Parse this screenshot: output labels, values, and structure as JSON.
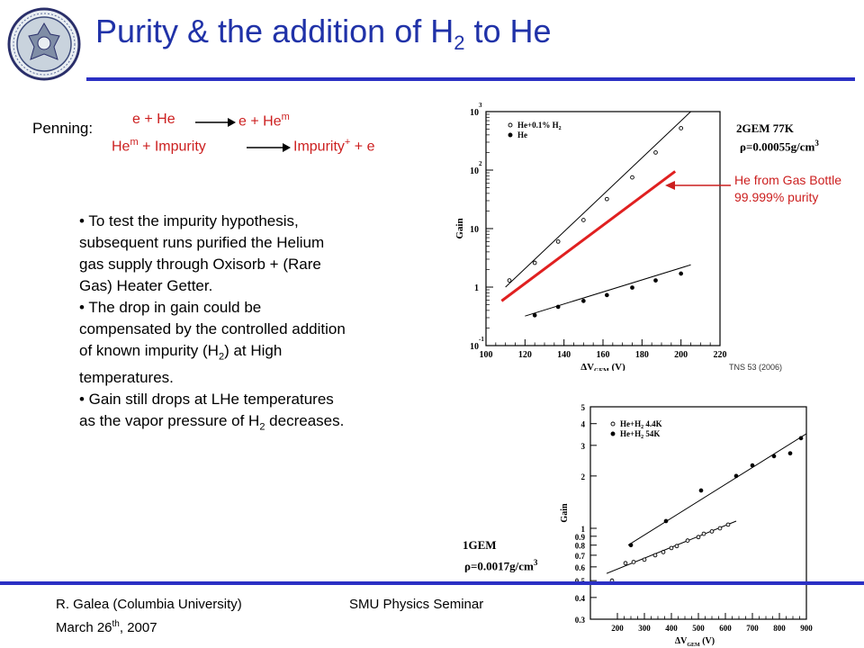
{
  "title": {
    "text": "Purity & the addition of H",
    "sub": "2",
    "suffix": " to He"
  },
  "penning": {
    "label": "Penning:",
    "r1_left": "e + He",
    "r1_right": "e + He",
    "r1_right_sup": "m",
    "r2_left": "He",
    "r2_left_sup": "m",
    "r2_left_rest": " + Impurity",
    "r2_right": "Impurity",
    "r2_right_sup": "+",
    "r2_right_rest": " + e"
  },
  "bullets": {
    "b1": "• To test the impurity hypothesis, subsequent runs purified the Helium gas supply through Oxisorb + (Rare Gas) Heater Getter.",
    "b2_a": "• The drop  in gain could be compensated by the controlled addition of known impurity (H",
    "b2_sub": "2",
    "b2_b": ") at High temperatures.",
    "b3_a": "• Gain still drops at LHe temperatures as the vapor pressure of H",
    "b3_sub": "2",
    "b3_b": " decreases."
  },
  "plot1_labels": {
    "condition": "2GEM 77K",
    "density": "ρ=0.00055g/cm",
    "density_sup": "3",
    "red_annotation": "He from Gas Bottle 99.999% purity",
    "source": "TNS 53 (2006)"
  },
  "plot2_labels": {
    "condition": "1GEM",
    "density": "ρ=0.0017g/cm",
    "density_sup": "3"
  },
  "footer": {
    "author": "R. Galea (Columbia University)",
    "date_a": "March 26",
    "date_sup": "th",
    "date_b": ", 2007",
    "center": "SMU Physics Seminar"
  },
  "chart_data": [
    {
      "type": "scatter",
      "title": "",
      "xlabel": "ΔV_GEM (V)",
      "ylabel": "Gain",
      "xlim": [
        100,
        220
      ],
      "ylim": [
        0.1,
        1000
      ],
      "yscale": "log",
      "x_ticks": [
        100,
        120,
        140,
        160,
        180,
        200,
        220
      ],
      "y_ticks": [
        "10^-1",
        "1",
        "10",
        "10^2",
        "10^3"
      ],
      "legend": [
        "He+0.1% H2",
        "He"
      ],
      "legend_position": "top-left",
      "series": [
        {
          "name": "He+0.1% H2",
          "marker": "open-circle",
          "x": [
            112,
            125,
            137,
            150,
            162,
            175,
            187,
            200
          ],
          "y": [
            1.3,
            2.6,
            6,
            14,
            32,
            75,
            200,
            520
          ]
        },
        {
          "name": "He",
          "marker": "filled-circle",
          "x": [
            125,
            137,
            150,
            162,
            175,
            187,
            200
          ],
          "y": [
            0.33,
            0.46,
            0.58,
            0.73,
            0.98,
            1.3,
            1.7
          ]
        }
      ],
      "fit_lines": [
        {
          "series": "He+0.1% H2",
          "x": [
            110,
            205
          ],
          "y": [
            1.0,
            1000
          ],
          "color": "#000000"
        },
        {
          "series": "He",
          "x": [
            120,
            205
          ],
          "y": [
            0.32,
            2.4
          ],
          "color": "#000000"
        },
        {
          "series": "He from Gas Bottle 99.999% purity",
          "x": [
            108,
            197
          ],
          "y": [
            0.58,
            95
          ],
          "color": "#e02020"
        }
      ]
    },
    {
      "type": "scatter",
      "title": "",
      "xlabel": "ΔV_GEM (V)",
      "ylabel": "Gain",
      "xlim": [
        100,
        900
      ],
      "ylim": [
        0.3,
        5
      ],
      "yscale": "log",
      "x_ticks": [
        200,
        300,
        400,
        500,
        600,
        700,
        800,
        900
      ],
      "y_ticks": [
        0.3,
        0.4,
        0.5,
        0.6,
        0.7,
        0.8,
        0.9,
        1,
        2,
        3,
        4,
        5
      ],
      "legend": [
        "He+H2 4.4K",
        "He+H2 54K"
      ],
      "legend_position": "top-left",
      "series": [
        {
          "name": "He+H2 4.4K",
          "marker": "open-circle",
          "x": [
            180,
            230,
            260,
            300,
            340,
            370,
            400,
            420,
            460,
            500,
            520,
            550,
            580,
            610
          ],
          "y": [
            0.5,
            0.63,
            0.64,
            0.66,
            0.7,
            0.73,
            0.77,
            0.79,
            0.85,
            0.89,
            0.93,
            0.96,
            1.0,
            1.05
          ]
        },
        {
          "name": "He+H2 54K",
          "marker": "filled-circle",
          "x": [
            250,
            380,
            510,
            640,
            700,
            780,
            840,
            880
          ],
          "y": [
            0.8,
            1.1,
            1.65,
            2.0,
            2.3,
            2.6,
            2.7,
            3.3
          ]
        }
      ],
      "fit_lines": [
        {
          "series": "He+H2 4.4K",
          "x": [
            160,
            640
          ],
          "y": [
            0.55,
            1.1
          ],
          "color": "#000000"
        },
        {
          "series": "He+H2 54K",
          "x": [
            240,
            900
          ],
          "y": [
            0.8,
            3.5
          ],
          "color": "#000000"
        }
      ]
    }
  ]
}
